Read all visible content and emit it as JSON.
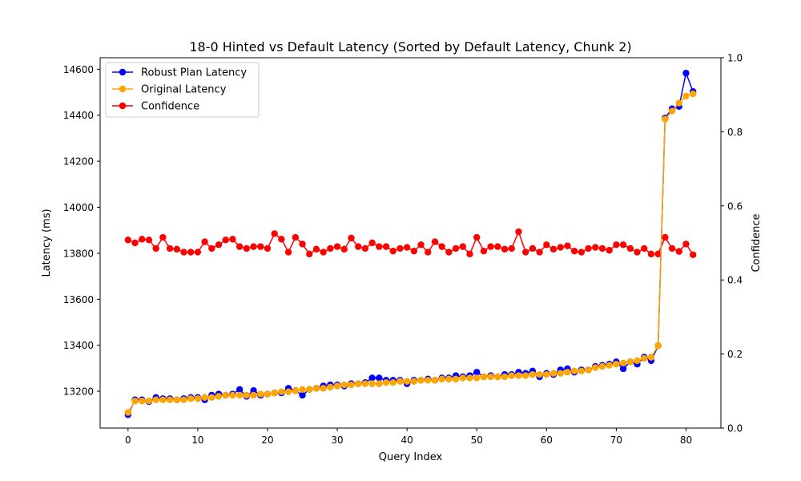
{
  "chart_data": {
    "type": "line",
    "title": "18-0 Hinted vs Default Latency (Sorted by Default Latency, Chunk 2)",
    "xlabel": "Query Index",
    "ylabel": "Latency (ms)",
    "y2label": "Confidence",
    "xlim": [
      -4,
      85
    ],
    "ylim": [
      13040,
      14650
    ],
    "y2lim": [
      0.0,
      1.0
    ],
    "xticks": [
      0,
      10,
      20,
      30,
      40,
      50,
      60,
      70,
      80
    ],
    "yticks": [
      13200,
      13400,
      13600,
      13800,
      14000,
      14200,
      14400,
      14600
    ],
    "y2ticks": [
      0.0,
      0.2,
      0.4,
      0.6,
      0.8,
      1.0
    ],
    "grid": false,
    "legend_position": "upper-left",
    "x": [
      0,
      1,
      2,
      3,
      4,
      5,
      6,
      7,
      8,
      9,
      10,
      11,
      12,
      13,
      14,
      15,
      16,
      17,
      18,
      19,
      20,
      21,
      22,
      23,
      24,
      25,
      26,
      27,
      28,
      29,
      30,
      31,
      32,
      33,
      34,
      35,
      36,
      37,
      38,
      39,
      40,
      41,
      42,
      43,
      44,
      45,
      46,
      47,
      48,
      49,
      50,
      51,
      52,
      53,
      54,
      55,
      56,
      57,
      58,
      59,
      60,
      61,
      62,
      63,
      64,
      65,
      66,
      67,
      68,
      69,
      70,
      71,
      72,
      73,
      74,
      75,
      76,
      77,
      78,
      79,
      80,
      81
    ],
    "series": [
      {
        "name": "Robust Plan Latency",
        "axis": "left",
        "color": "#0000ff",
        "values": [
          13098,
          13163,
          13163,
          13155,
          13173,
          13168,
          13168,
          13163,
          13168,
          13173,
          13173,
          13163,
          13183,
          13188,
          13183,
          13188,
          13208,
          13178,
          13203,
          13183,
          13188,
          13193,
          13193,
          13213,
          13203,
          13183,
          13208,
          13213,
          13223,
          13228,
          13228,
          13223,
          13233,
          13233,
          13238,
          13258,
          13258,
          13248,
          13248,
          13248,
          13233,
          13248,
          13248,
          13253,
          13248,
          13258,
          13258,
          13268,
          13263,
          13268,
          13283,
          13263,
          13268,
          13263,
          13273,
          13273,
          13283,
          13278,
          13288,
          13263,
          13278,
          13273,
          13293,
          13298,
          13283,
          13293,
          13293,
          13308,
          13313,
          13318,
          13328,
          13298,
          13328,
          13318,
          13348,
          13333,
          13398,
          14388,
          14428,
          14438,
          14583,
          14503
        ]
      },
      {
        "name": "Original Latency",
        "axis": "left",
        "color": "#ffa500",
        "values": [
          13108,
          13158,
          13158,
          13158,
          13163,
          13163,
          13163,
          13163,
          13163,
          13168,
          13168,
          13173,
          13173,
          13178,
          13183,
          13183,
          13183,
          13183,
          13183,
          13188,
          13188,
          13193,
          13198,
          13198,
          13203,
          13208,
          13208,
          13213,
          13213,
          13218,
          13223,
          13228,
          13228,
          13233,
          13233,
          13233,
          13233,
          13238,
          13238,
          13243,
          13243,
          13243,
          13248,
          13248,
          13248,
          13253,
          13253,
          13253,
          13258,
          13258,
          13258,
          13263,
          13263,
          13263,
          13263,
          13268,
          13268,
          13268,
          13273,
          13273,
          13273,
          13278,
          13278,
          13283,
          13288,
          13288,
          13293,
          13303,
          13308,
          13313,
          13318,
          13323,
          13328,
          13333,
          13343,
          13348,
          13398,
          14383,
          14418,
          14453,
          14483,
          14493
        ]
      },
      {
        "name": "Confidence",
        "axis": "right",
        "color": "#ff0000",
        "values": [
          0.508,
          0.5,
          0.51,
          0.508,
          0.485,
          0.515,
          0.485,
          0.483,
          0.475,
          0.475,
          0.475,
          0.503,
          0.485,
          0.495,
          0.508,
          0.51,
          0.49,
          0.485,
          0.49,
          0.49,
          0.485,
          0.525,
          0.51,
          0.475,
          0.515,
          0.497,
          0.47,
          0.483,
          0.475,
          0.485,
          0.49,
          0.483,
          0.513,
          0.49,
          0.485,
          0.5,
          0.49,
          0.49,
          0.478,
          0.485,
          0.488,
          0.478,
          0.495,
          0.475,
          0.503,
          0.49,
          0.475,
          0.485,
          0.49,
          0.47,
          0.515,
          0.478,
          0.49,
          0.49,
          0.483,
          0.485,
          0.53,
          0.475,
          0.485,
          0.475,
          0.495,
          0.483,
          0.488,
          0.492,
          0.478,
          0.475,
          0.485,
          0.488,
          0.485,
          0.48,
          0.495,
          0.495,
          0.485,
          0.475,
          0.485,
          0.47,
          0.47,
          0.515,
          0.485,
          0.477,
          0.497,
          0.468
        ]
      }
    ]
  }
}
